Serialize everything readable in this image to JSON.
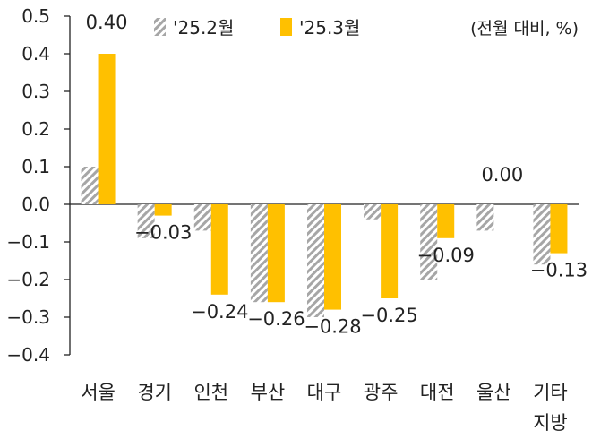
{
  "chart_data": {
    "type": "bar",
    "unit_note": "(전월 대비, %)",
    "categories": [
      "서울",
      "경기",
      "인천",
      "부산",
      "대구",
      "광주",
      "대전",
      "울산",
      "기타|지방"
    ],
    "series": [
      {
        "name": "'25.2월",
        "style": "hatched-gray",
        "color": "#a6a6a6",
        "values": [
          0.1,
          -0.09,
          -0.07,
          -0.26,
          -0.3,
          -0.04,
          -0.2,
          -0.07,
          -0.16
        ]
      },
      {
        "name": "'25.3월",
        "style": "solid",
        "color": "#ffc000",
        "values": [
          0.4,
          -0.03,
          -0.24,
          -0.26,
          -0.28,
          -0.25,
          -0.09,
          0.0,
          -0.13
        ]
      }
    ],
    "data_labels": [
      "0.40",
      "−0.03",
      "−0.24",
      "−0.26",
      "−0.28",
      "−0.25",
      "−0.09",
      "0.00",
      "−0.13"
    ],
    "y_ticks": [
      "0.5",
      "0.4",
      "0.3",
      "0.2",
      "0.1",
      "0.0",
      "−0.1",
      "−0.2",
      "−0.3",
      "−0.4"
    ],
    "ylim": [
      -0.4,
      0.5
    ],
    "grid": false,
    "legend_position": "top"
  }
}
